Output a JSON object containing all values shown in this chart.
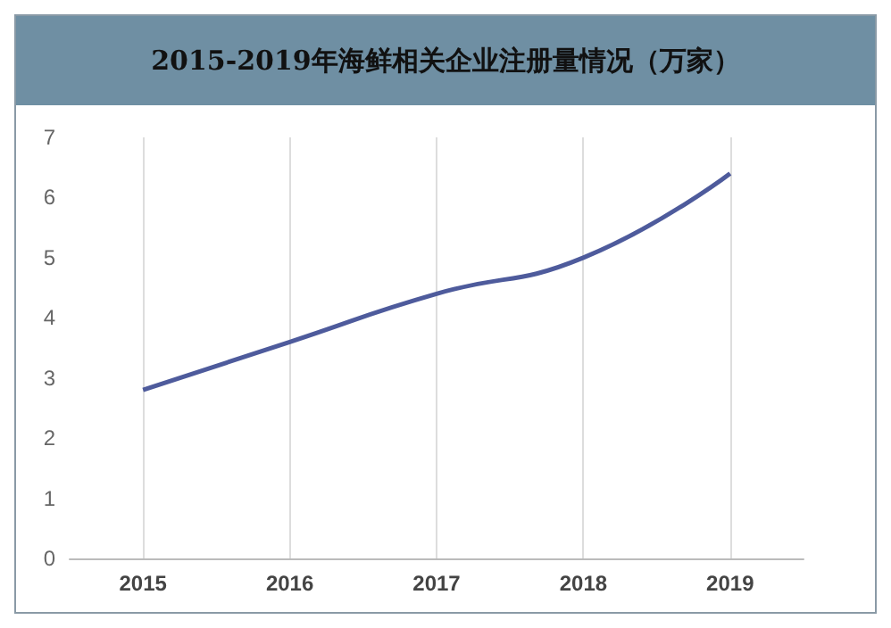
{
  "chart_data": {
    "type": "line",
    "title": "2015-2019年海鲜相关企业注册量情况（万家）",
    "x": [
      2015,
      2016,
      2017,
      2018,
      2019
    ],
    "series": [
      {
        "color": "#4e5b9c",
        "values": [
          2.8,
          3.6,
          4.4,
          5.0,
          6.4
        ]
      }
    ],
    "xlim": [
      2014.5,
      2019.5
    ],
    "xticks": [
      2015,
      2016,
      2017,
      2018,
      2019
    ],
    "ylim": [
      0,
      7
    ],
    "yticks": [
      0,
      1,
      2,
      3,
      4,
      5,
      6,
      7
    ],
    "grid": "x",
    "marker": "none",
    "line_style": "solid"
  }
}
